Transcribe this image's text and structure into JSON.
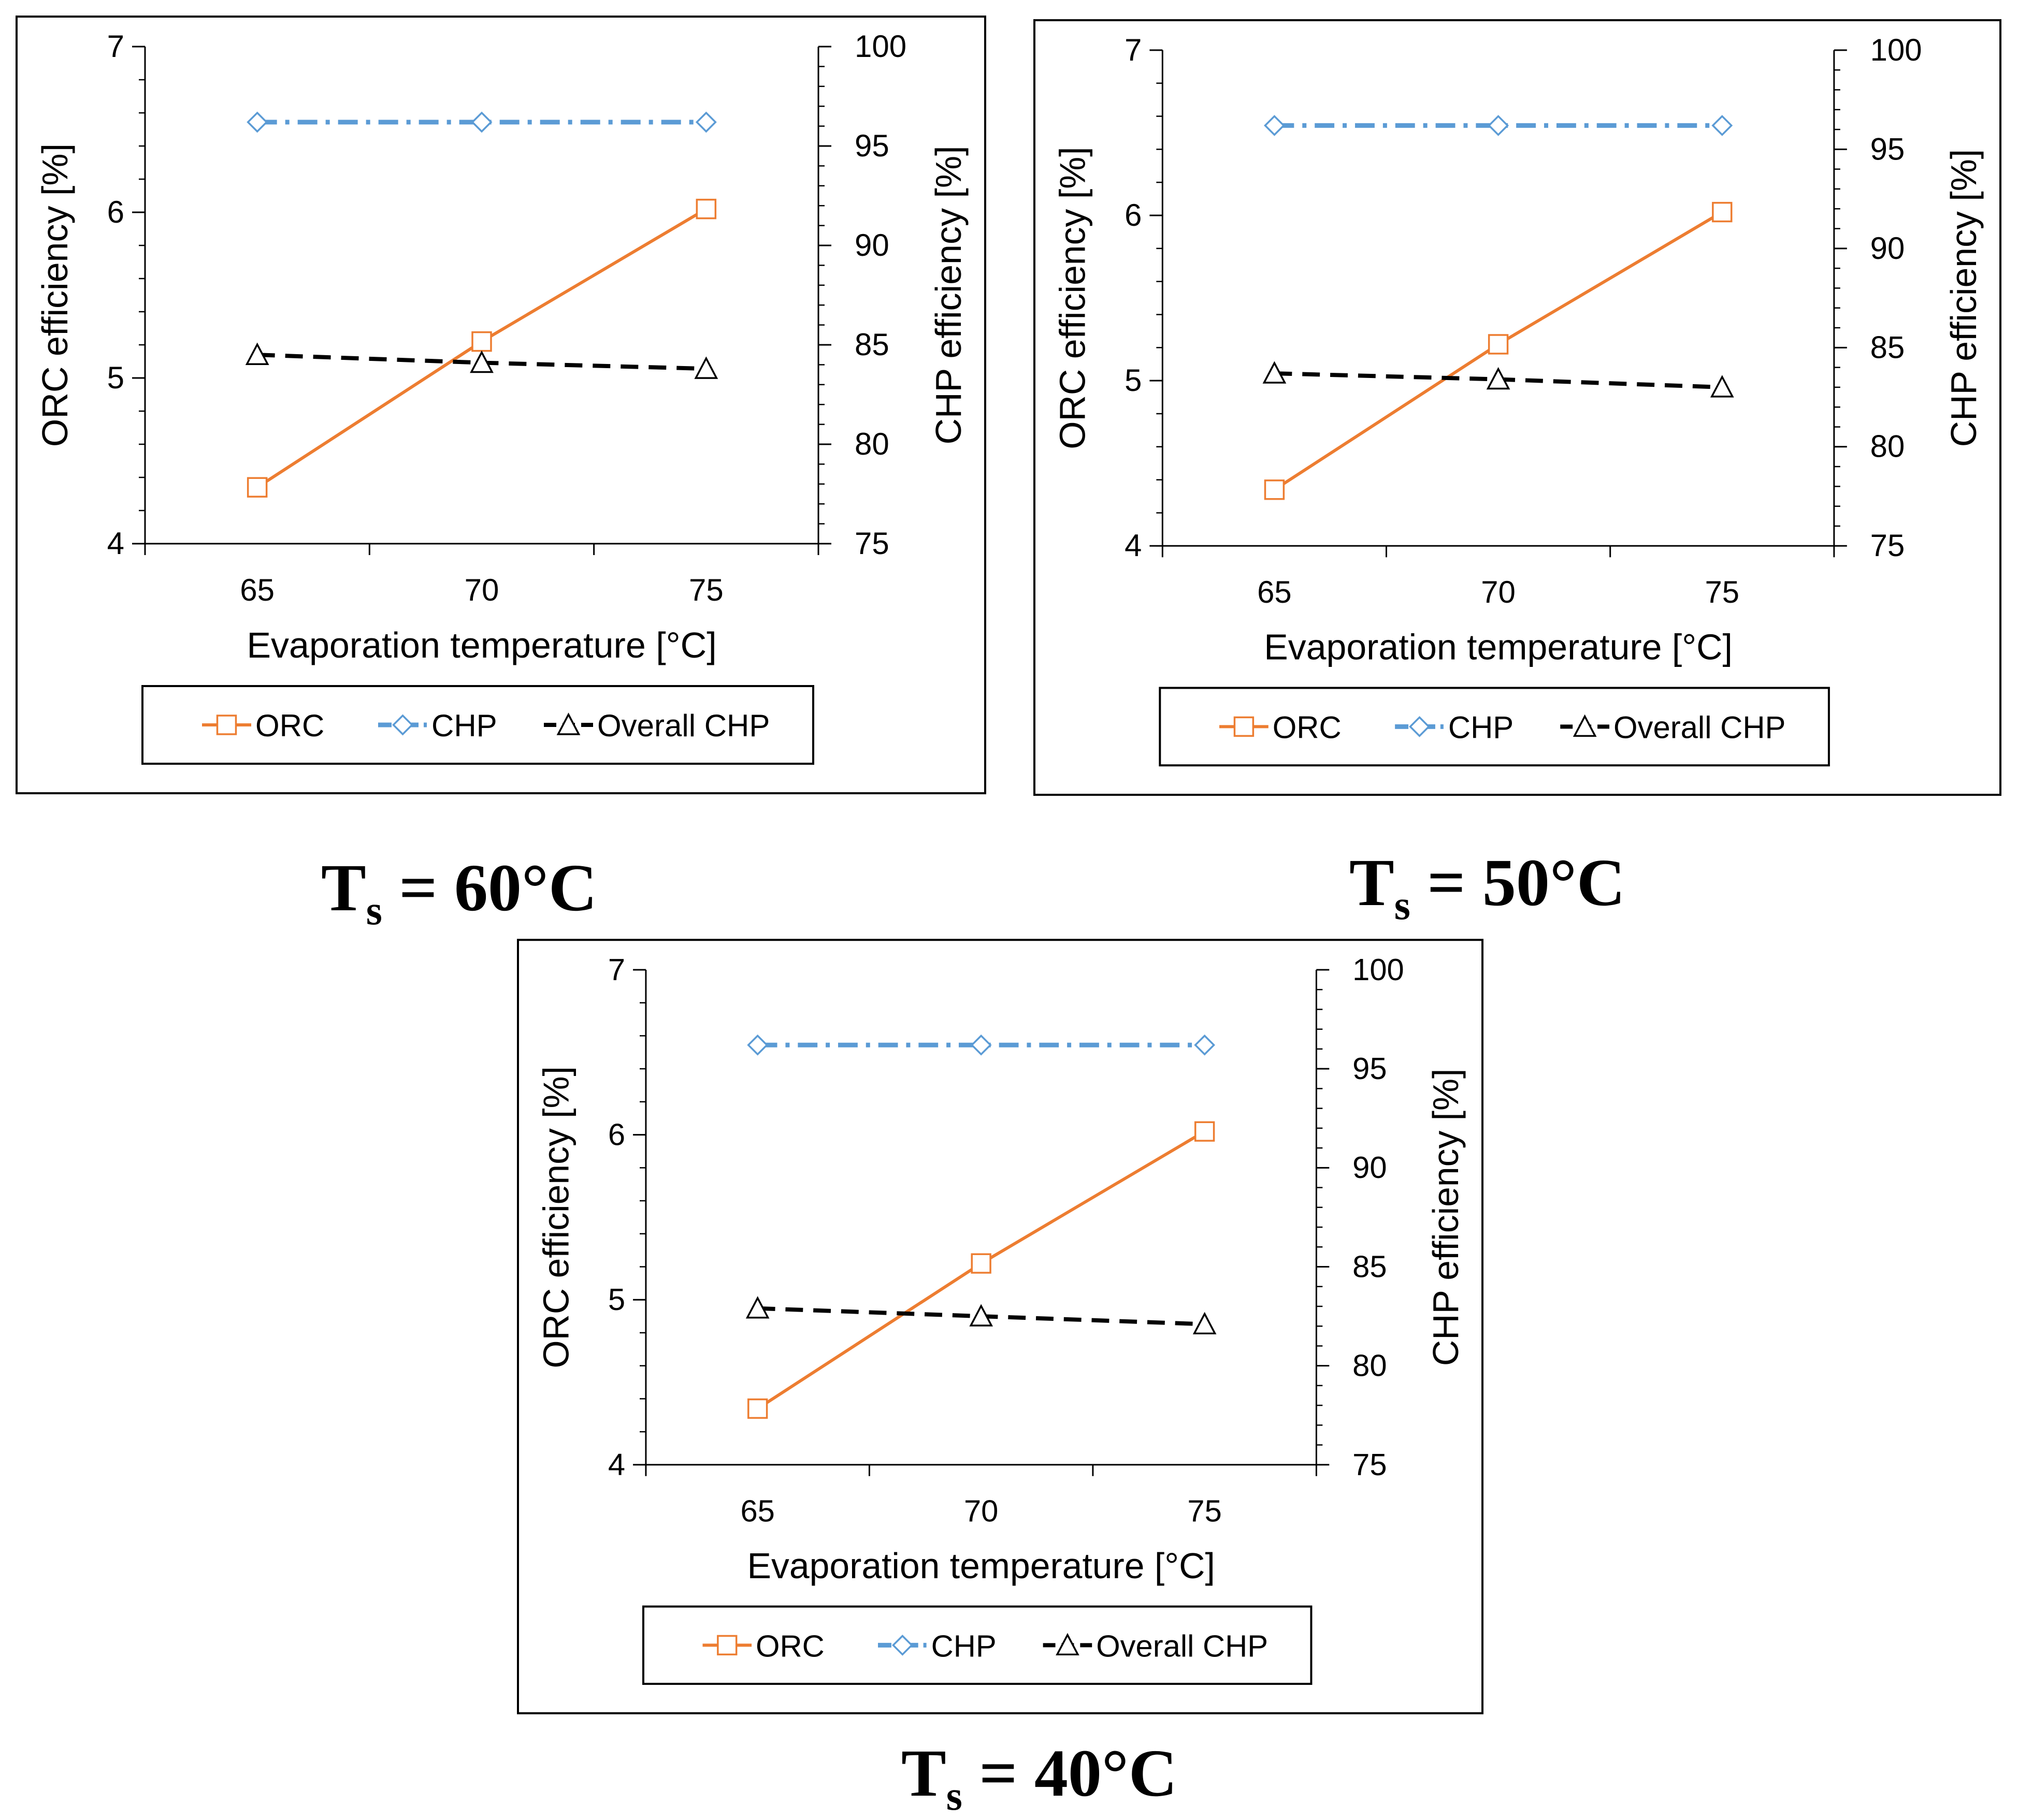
{
  "figure": {
    "colors": {
      "orc": "#ED7D31",
      "chp": "#5B9BD5",
      "overall": "#000000",
      "frame": "#000000",
      "background": "#ffffff"
    }
  },
  "chart_data": [
    {
      "type": "line",
      "caption": {
        "symbol": "T",
        "subscript": "s",
        "rest": " = 60°C"
      },
      "x": [
        65,
        70,
        75
      ],
      "xlabel": "Evaporation temperature [°C]",
      "xticks": [
        "65",
        "70",
        "75"
      ],
      "xlim": [
        62.5,
        77.5
      ],
      "ylabel": "ORC efficiency [%]",
      "ylim": [
        4,
        7
      ],
      "yticks": [
        "4",
        "5",
        "6",
        "7"
      ],
      "y2label": "CHP efficiency [%]",
      "y2lim": [
        75,
        100
      ],
      "y2ticks": [
        "75",
        "80",
        "85",
        "90",
        "95",
        "100"
      ],
      "series": [
        {
          "name": "ORC",
          "axis": "left",
          "values": [
            4.34,
            5.22,
            6.02
          ]
        },
        {
          "name": "CHP",
          "axis": "right",
          "values": [
            96.2,
            96.2,
            96.2
          ]
        },
        {
          "name": "Overall CHP",
          "axis": "right",
          "values": [
            84.5,
            84.1,
            83.8
          ]
        }
      ],
      "legend": [
        "ORC",
        "CHP",
        "Overall CHP"
      ]
    },
    {
      "type": "line",
      "caption": {
        "symbol": "T",
        "subscript": "s",
        "rest": " = 50°C"
      },
      "x": [
        65,
        70,
        75
      ],
      "xlabel": "Evaporation temperature [°C]",
      "xticks": [
        "65",
        "70",
        "75"
      ],
      "xlim": [
        62.5,
        77.5
      ],
      "ylabel": "ORC efficiency [%]",
      "ylim": [
        4,
        7
      ],
      "yticks": [
        "4",
        "5",
        "6",
        "7"
      ],
      "y2label": "CHP efficiency [%]",
      "y2lim": [
        75,
        100
      ],
      "y2ticks": [
        "75",
        "80",
        "85",
        "90",
        "95",
        "100"
      ],
      "series": [
        {
          "name": "ORC",
          "axis": "left",
          "values": [
            4.34,
            5.22,
            6.02
          ]
        },
        {
          "name": "CHP",
          "axis": "right",
          "values": [
            96.2,
            96.2,
            96.2
          ]
        },
        {
          "name": "Overall CHP",
          "axis": "right",
          "values": [
            83.7,
            83.4,
            83.0
          ]
        }
      ],
      "legend": [
        "ORC",
        "CHP",
        "Overall CHP"
      ]
    },
    {
      "type": "line",
      "caption": {
        "symbol": "T",
        "subscript": "s",
        "rest": " = 40°C"
      },
      "x": [
        65,
        70,
        75
      ],
      "xlabel": "Evaporation temperature [°C]",
      "xticks": [
        "65",
        "70",
        "75"
      ],
      "xlim": [
        62.5,
        77.5
      ],
      "ylabel": "ORC efficiency [%]",
      "ylim": [
        4,
        7
      ],
      "yticks": [
        "4",
        "5",
        "6",
        "7"
      ],
      "y2label": "CHP efficiency [%]",
      "y2lim": [
        75,
        100
      ],
      "y2ticks": [
        "75",
        "80",
        "85",
        "90",
        "95",
        "100"
      ],
      "series": [
        {
          "name": "ORC",
          "axis": "left",
          "values": [
            4.34,
            5.22,
            6.02
          ]
        },
        {
          "name": "CHP",
          "axis": "right",
          "values": [
            96.2,
            96.2,
            96.2
          ]
        },
        {
          "name": "Overall CHP",
          "axis": "right",
          "values": [
            82.9,
            82.5,
            82.1
          ]
        }
      ],
      "legend": [
        "ORC",
        "CHP",
        "Overall CHP"
      ]
    }
  ]
}
